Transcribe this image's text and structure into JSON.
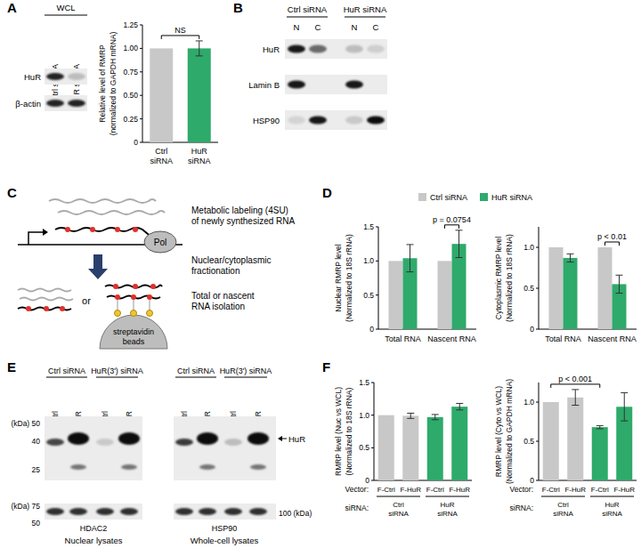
{
  "panels": [
    "A",
    "B",
    "C",
    "D",
    "E",
    "F"
  ],
  "blot_A": {
    "title": "WCL",
    "lanes": [
      "Ctrl siRNA",
      "HuR siRNA"
    ],
    "rows": [
      "HuR",
      "β-actin"
    ]
  },
  "blot_B": {
    "groups": [
      "Ctrl siRNA",
      "HuR siRNA"
    ],
    "lanes": [
      "N",
      "C",
      "N",
      "C"
    ],
    "rows": [
      "HuR",
      "Lamin B",
      "HSP90"
    ]
  },
  "diagram_C": {
    "steps": [
      [
        "Metabolic labeling (4SU)",
        "of newly synthesized RNA"
      ],
      [
        "Nuclear/cytoplasmic",
        "fractionation"
      ],
      [
        "Total or nascent",
        "RNA isolation"
      ]
    ],
    "polymerase": "Pol",
    "choice": "or",
    "beads": [
      "streptavidin",
      "beads"
    ]
  },
  "blot_E": {
    "groups": [
      "Ctrl siRNA",
      "HuR(3') siRNA",
      "Ctrl siRNA",
      "HuR(3') siRNA"
    ],
    "lanes": [
      "F-Ctrl",
      "F-HuR",
      "F-Ctrl",
      "F-HuR",
      "F-Ctrl",
      "F-HuR",
      "F-Ctrl",
      "F-HuR"
    ],
    "target": "HuR",
    "markers_top": [
      "(kDa) 50",
      "40",
      "25"
    ],
    "markers_bottom": [
      "(kDa) 75",
      "50"
    ],
    "marker_right": "100 (kDa)",
    "loading": [
      "HDAC2",
      "HSP90"
    ],
    "captions": [
      "Nuclear lysates",
      "Whole-cell lysates"
    ]
  },
  "chart_data": [
    {
      "type": "bar",
      "ylabel": [
        "Relative level of RMRP",
        "(normalized to GAPDH mRNA)"
      ],
      "categories": [
        "Ctrl siRNA",
        "HuR siRNA"
      ],
      "series": [
        {
          "values": [
            1,
            1
          ],
          "errors": [
            null,
            0.08
          ],
          "colors": [
            "#c8c8c8",
            "#2eaa6b"
          ]
        }
      ],
      "ylim": [
        0,
        1.25
      ],
      "yticks": [
        0,
        0.25,
        {
          "value": 0.5,
          "label": "0.50"
        },
        0.75,
        {
          "value": 1,
          "label": "1.00"
        },
        1.25
      ],
      "annotations": [
        {
          "text": "NS",
          "from": [
            0,
            0
          ],
          "to": [
            0,
            1
          ]
        }
      ]
    },
    {
      "type": "bar",
      "ylabel": [
        "Nuclear RMRP level",
        "(Normalized to 18S rRNA)"
      ],
      "categories": [
        "Total RNA",
        "Nascent RNA"
      ],
      "series": [
        {
          "name": "Ctrl siRNA",
          "color": "#c8c8c8",
          "values": [
            1,
            1
          ],
          "errors": [
            null,
            null
          ]
        },
        {
          "name": "HuR siRNA",
          "color": "#2eaa6b",
          "values": [
            1.04,
            1.25
          ],
          "errors": [
            0.2,
            0.2
          ]
        }
      ],
      "ylim": [
        0,
        1.5
      ],
      "yticks": [
        0,
        0.5,
        {
          "value": 1,
          "label": "1.0"
        },
        1.5
      ],
      "legend": "top",
      "annotations": [
        {
          "text": "p = 0.0754",
          "from": [
            0,
            1
          ],
          "to": [
            1,
            1
          ]
        }
      ]
    },
    {
      "type": "bar",
      "ylabel": [
        "Cytoplasmic RMRP level",
        "(Normalized to 18S rRNA)"
      ],
      "categories": [
        "Total RNA",
        "Nascent RNA"
      ],
      "series": [
        {
          "color": "#c8c8c8",
          "values": [
            1,
            1
          ],
          "errors": [
            null,
            null
          ]
        },
        {
          "color": "#2eaa6b",
          "values": [
            0.87,
            0.55
          ],
          "errors": [
            0.05,
            0.11
          ]
        }
      ],
      "ylim": [
        0,
        1.25
      ],
      "yticks": [
        0,
        0.5,
        {
          "value": 1,
          "label": "1.0"
        }
      ],
      "annotations": [
        {
          "text": "p < 0.01",
          "from": [
            0,
            1
          ],
          "to": [
            1,
            1
          ]
        }
      ]
    },
    {
      "type": "bar",
      "ylabel": [
        "RMRP level (Nuc vs WCL)",
        "(Normalized to 18S rRNA)"
      ],
      "categories": [
        "F-Ctrl",
        "F-HuR",
        "F-Ctrl",
        "F-HuR"
      ],
      "category_title": "Vector:",
      "group_title": "siRNA:",
      "groups": [
        "Ctrl siRNA",
        "HuR siRNA"
      ],
      "series": [
        {
          "values": [
            1,
            0.99,
            0.97,
            1.13
          ],
          "errors": [
            null,
            0.04,
            0.04,
            0.05
          ],
          "colors": [
            "#c8c8c8",
            "#c8c8c8",
            "#2eaa6b",
            "#2eaa6b"
          ]
        }
      ],
      "ylim": [
        0,
        1.5
      ],
      "yticks": [
        0,
        0.5,
        {
          "value": 1,
          "label": "1.0"
        },
        1.5
      ]
    },
    {
      "type": "bar",
      "ylabel": [
        "RMRP level (Cyto vs WCL)",
        "(Normalized to GAPDH mRNA)"
      ],
      "categories": [
        "F-Ctrl",
        "F-HuR",
        "F-Ctrl",
        "F-HuR"
      ],
      "category_title": "Vector:",
      "group_title": "siRNA:",
      "groups": [
        "Ctrl siRNA",
        "HuR siRNA"
      ],
      "series": [
        {
          "values": [
            1,
            1.06,
            0.68,
            0.94
          ],
          "errors": [
            null,
            0.1,
            0.02,
            0.18
          ],
          "colors": [
            "#c8c8c8",
            "#c8c8c8",
            "#2eaa6b",
            "#2eaa6b"
          ]
        }
      ],
      "ylim": [
        0,
        1.25
      ],
      "yticks": [
        0,
        0.5,
        {
          "value": 1,
          "label": "1.0"
        }
      ],
      "annotations": [
        {
          "text": "p < 0.001",
          "from": [
            0,
            0
          ],
          "to": [
            0,
            2
          ]
        }
      ]
    }
  ]
}
